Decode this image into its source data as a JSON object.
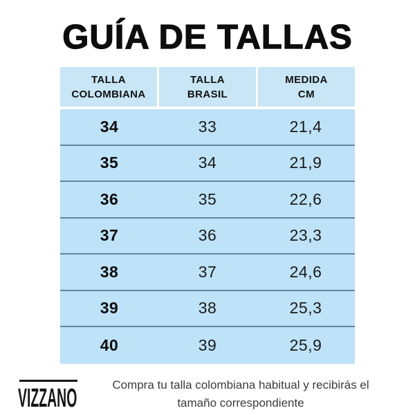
{
  "title": "GUÍA DE TALLAS",
  "table": {
    "headers": [
      {
        "line1": "TALLA",
        "line2": "COLOMBIANA"
      },
      {
        "line1": "TALLA",
        "line2": "BRASIL"
      },
      {
        "line1": "MEDIDA",
        "line2": "CM"
      }
    ],
    "rows": [
      {
        "colombiana": "34",
        "brasil": "33",
        "medida": "21,4"
      },
      {
        "colombiana": "35",
        "brasil": "34",
        "medida": "21,9"
      },
      {
        "colombiana": "36",
        "brasil": "35",
        "medida": "22,6"
      },
      {
        "colombiana": "37",
        "brasil": "36",
        "medida": "23,3"
      },
      {
        "colombiana": "38",
        "brasil": "37",
        "medida": "24,6"
      },
      {
        "colombiana": "39",
        "brasil": "38",
        "medida": "25,3"
      },
      {
        "colombiana": "40",
        "brasil": "39",
        "medida": "25,9"
      }
    ]
  },
  "footer": {
    "brand": "VIZZANO",
    "note_line1": "Compra tu talla colombiana habitual y recibirás el",
    "note_line2": "tamaño correspondiente"
  },
  "colors": {
    "header_bg": "#c8e6f5",
    "row_bg": "#bee2f7",
    "row_divider": "#5f87a1",
    "title_text": "#0d0d0d",
    "note_text": "#3b3b3b"
  }
}
